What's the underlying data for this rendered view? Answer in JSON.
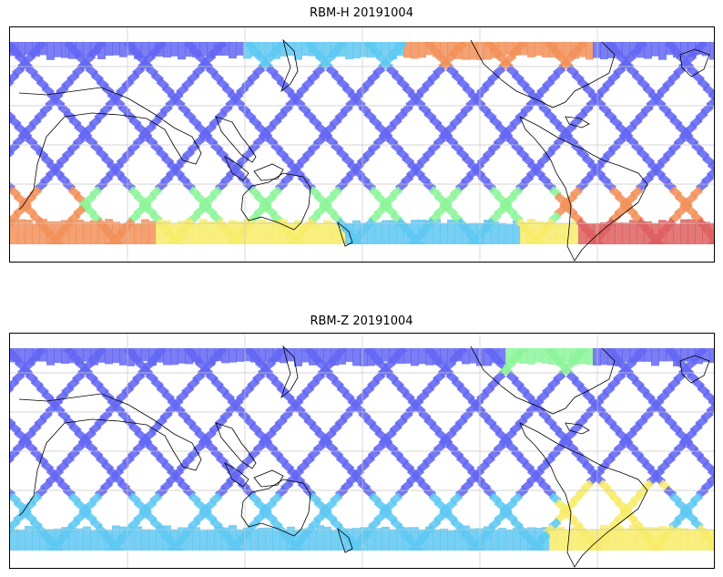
{
  "panels": [
    {
      "title": "RBM-H 20191004",
      "scheme": "H"
    },
    {
      "title": "RBM-Z 20191004",
      "scheme": "Z"
    }
  ],
  "colors": {
    "low": "#6366f2",
    "mid_low": "#5fc8f2",
    "mid": "#8cf59a",
    "mid_high": "#f7ec6a",
    "high": "#f2915a",
    "very_high": "#de6060",
    "coast": "#000000",
    "grid": "#c8c8c8"
  }
}
